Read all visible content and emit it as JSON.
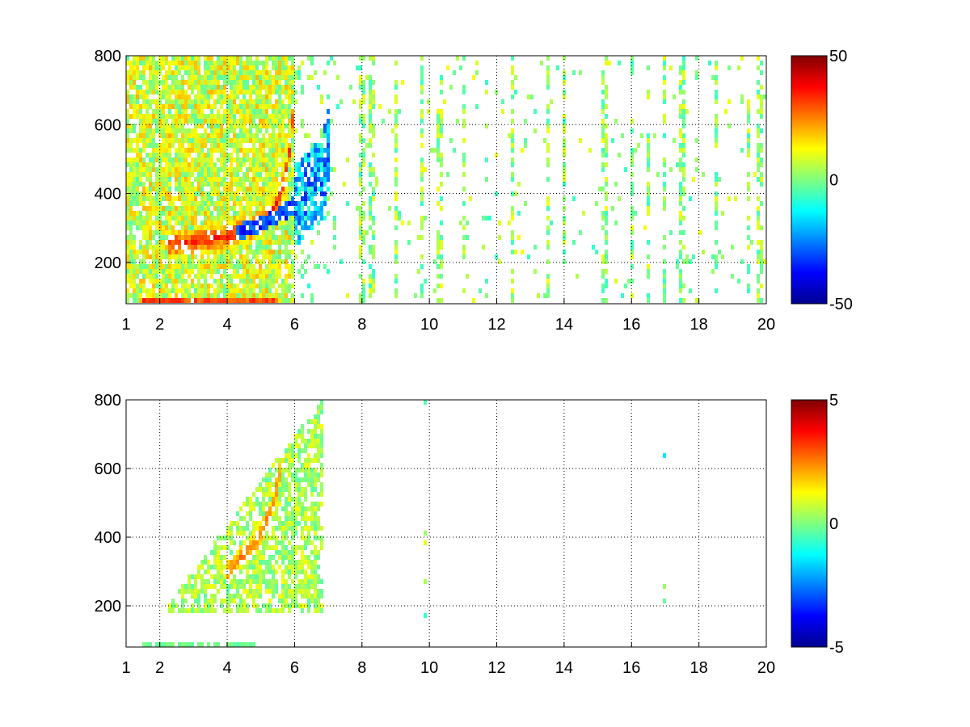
{
  "chart_data": [
    {
      "type": "heatmap",
      "title": "",
      "xlabel": "",
      "ylabel": "",
      "x_ticks": [
        "1",
        "2",
        "4",
        "6",
        "8",
        "10",
        "12",
        "14",
        "16",
        "18",
        "20"
      ],
      "x_tick_values": [
        1,
        2,
        4,
        6,
        8,
        10,
        12,
        14,
        16,
        18,
        20
      ],
      "y_ticks": [
        "200",
        "400",
        "600",
        "800"
      ],
      "y_tick_values": [
        200,
        400,
        600,
        800
      ],
      "xlim": [
        1,
        20
      ],
      "ylim": [
        80,
        800
      ],
      "grid": true,
      "grid_style": "dotted",
      "colormap": "jet",
      "colorbar": {
        "min": -50,
        "max": 50,
        "ticks": [
          "50",
          "0",
          "-50"
        ],
        "tick_values": [
          50,
          0,
          -50
        ]
      },
      "features": [
        {
          "description": "positive ridge",
          "points": [
            [
              2.2,
              250
            ],
            [
              3.0,
              255
            ],
            [
              4.0,
              275
            ],
            [
              4.8,
              300
            ],
            [
              5.4,
              350
            ],
            [
              5.7,
              430
            ],
            [
              5.9,
              550
            ],
            [
              6.0,
              700
            ]
          ],
          "value": 35
        },
        {
          "description": "negative band",
          "points": [
            [
              4.3,
              285
            ],
            [
              5.0,
              310
            ],
            [
              5.6,
              340
            ],
            [
              6.2,
              380
            ],
            [
              6.8,
              440
            ],
            [
              7.0,
              520
            ]
          ],
          "value": -35
        },
        {
          "description": "low-frequency strip",
          "x_range": [
            1.5,
            5.5
          ],
          "y_range": [
            80,
            100
          ],
          "value": 30
        }
      ],
      "sparse_columns_x": [
        8.0,
        8.3,
        9.0,
        9.8,
        10.3,
        11.0,
        12.5,
        13.5,
        14.0,
        15.2,
        16.0,
        16.5,
        17.0,
        17.5,
        18.5,
        19.5,
        19.8
      ]
    },
    {
      "type": "heatmap",
      "title": "",
      "xlabel": "",
      "ylabel": "",
      "x_ticks": [
        "1",
        "2",
        "4",
        "6",
        "8",
        "10",
        "12",
        "14",
        "16",
        "18",
        "20"
      ],
      "x_tick_values": [
        1,
        2,
        4,
        6,
        8,
        10,
        12,
        14,
        16,
        18,
        20
      ],
      "y_ticks": [
        "200",
        "400",
        "600",
        "800"
      ],
      "y_tick_values": [
        200,
        400,
        600,
        800
      ],
      "xlim": [
        1,
        20
      ],
      "ylim": [
        80,
        800
      ],
      "grid": true,
      "grid_style": "dotted",
      "colormap": "jet",
      "colorbar": {
        "min": -5,
        "max": 5,
        "ticks": [
          "5",
          "0",
          "-5"
        ],
        "tick_values": [
          5,
          0,
          -5
        ]
      },
      "features": [
        {
          "description": "positive ridge",
          "points": [
            [
              4.0,
              300
            ],
            [
              4.8,
              380
            ],
            [
              5.3,
              470
            ],
            [
              5.6,
              600
            ],
            [
              5.8,
              750
            ]
          ],
          "value": 2.5
        },
        {
          "description": "main cloud",
          "x_range": [
            2.2,
            6.8
          ],
          "y_range": [
            180,
            750
          ],
          "value": 0.5
        },
        {
          "description": "low-frequency strip",
          "x_range": [
            1.5,
            4.8
          ],
          "y_range": [
            80,
            95
          ],
          "value": -0.2
        }
      ],
      "sparse_columns_x": [
        9.9,
        17.0
      ]
    }
  ]
}
